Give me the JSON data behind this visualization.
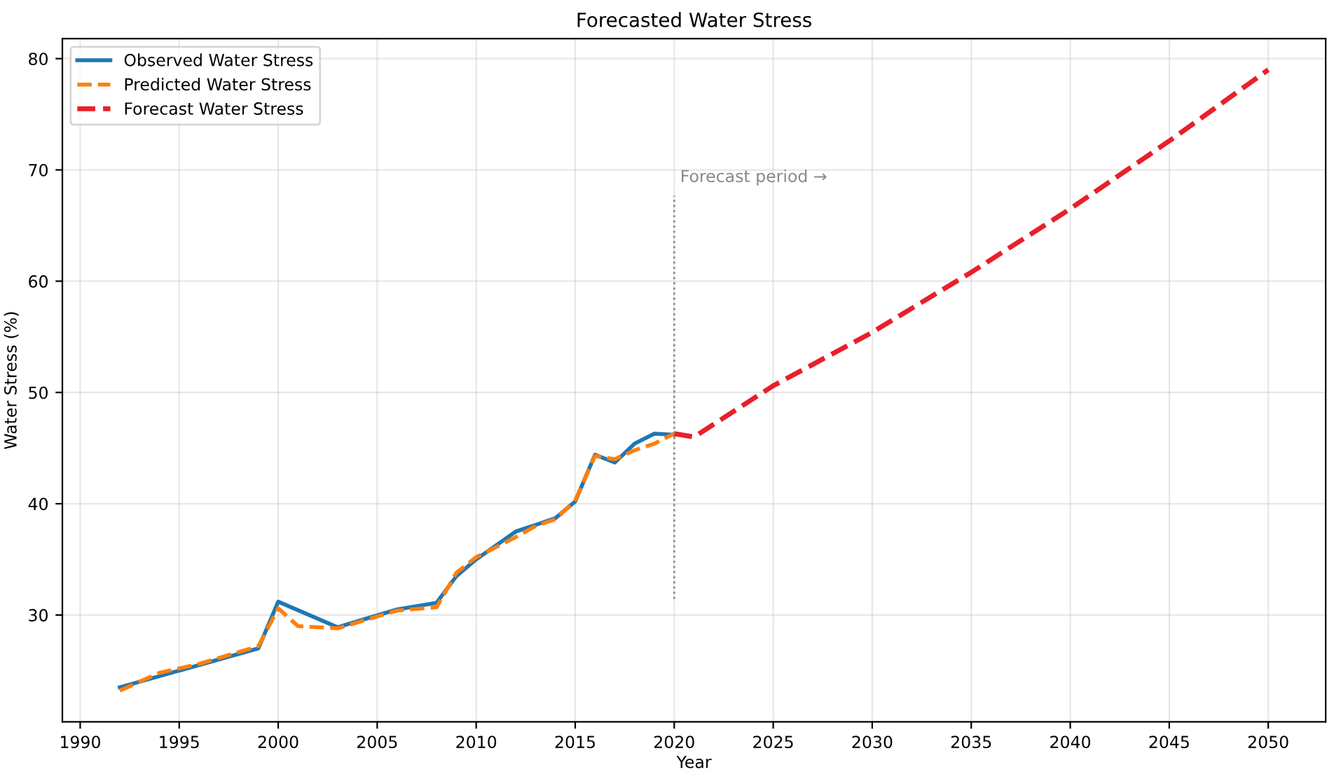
{
  "chart_data": {
    "type": "line",
    "title": "Forecasted Water Stress",
    "xlabel": "Year",
    "ylabel": "Water Stress (%)",
    "series": [
      {
        "name": "Observed Water Stress",
        "color": "#1f77b4",
        "line_style": "solid",
        "x": [
          1992,
          1999,
          2000,
          2003,
          2006,
          2008,
          2009,
          2010,
          2012,
          2014,
          2015,
          2016,
          2017,
          2018,
          2019,
          2020
        ],
        "values": [
          23.5,
          27.0,
          31.2,
          28.9,
          30.5,
          31.1,
          33.5,
          35.0,
          37.5,
          38.7,
          40.2,
          44.4,
          43.7,
          45.4,
          46.3,
          46.2
        ]
      },
      {
        "name": "Predicted Water Stress",
        "color": "#ff7f0e",
        "line_style": "dashed",
        "x": [
          1992,
          1994,
          1996,
          1999,
          2000,
          2001,
          2003,
          2006,
          2008,
          2009,
          2010,
          2012,
          2013,
          2014,
          2015,
          2016,
          2017,
          2018,
          2019,
          2020
        ],
        "values": [
          23.2,
          24.8,
          25.6,
          27.2,
          30.6,
          29.0,
          28.8,
          30.4,
          30.7,
          33.8,
          35.2,
          37.0,
          38.0,
          38.6,
          40.3,
          44.3,
          44.0,
          44.8,
          45.4,
          46.3
        ]
      },
      {
        "name": "Forecast Water Stress",
        "color": "#e8202a",
        "line_style": "dashed",
        "x": [
          2020,
          2021,
          2025,
          2030,
          2035,
          2040,
          2045,
          2050
        ],
        "values": [
          46.3,
          46.0,
          50.6,
          55.4,
          60.8,
          66.5,
          72.6,
          79.0
        ]
      }
    ],
    "ref_lines": [
      {
        "axis": "x",
        "value": 2020,
        "label": "Forecast period →",
        "color": "#888888",
        "line_style": "dotted"
      }
    ],
    "xlim": [
      1989.1,
      2052.9
    ],
    "ylim": [
      20.4,
      81.8
    ],
    "xticks": [
      1990,
      1995,
      2000,
      2005,
      2010,
      2015,
      2020,
      2025,
      2030,
      2035,
      2040,
      2045,
      2050
    ],
    "yticks": [
      30,
      40,
      50,
      60,
      70,
      80
    ],
    "grid": true,
    "legend": "top left"
  }
}
